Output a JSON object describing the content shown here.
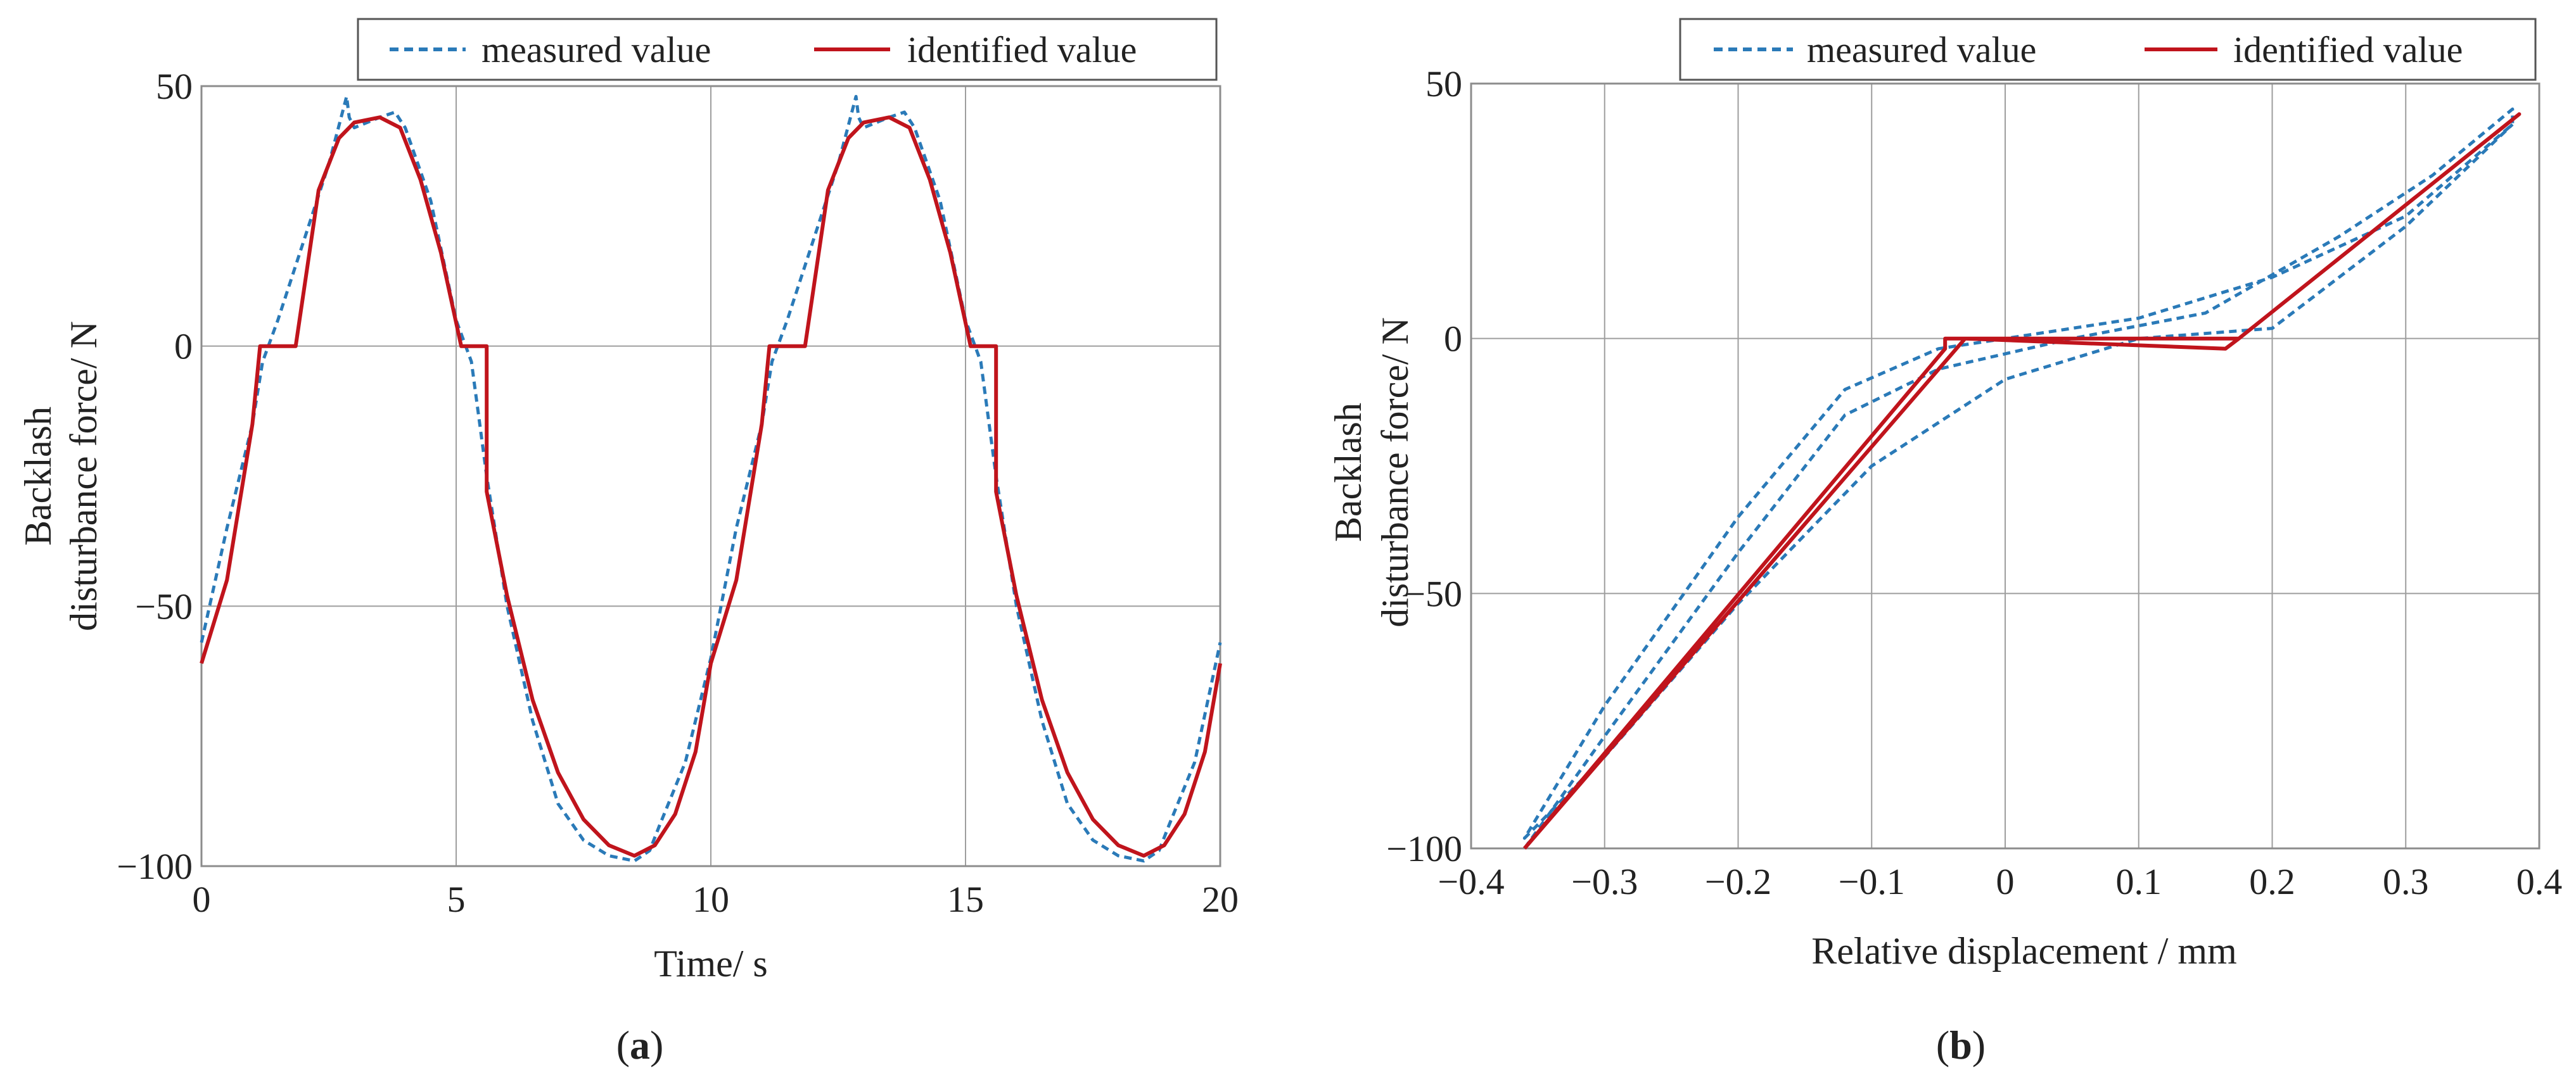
{
  "colors": {
    "measured": "#2a7ab8",
    "identified": "#c0141c",
    "grid": "#9e9e9e"
  },
  "captions": {
    "a": "a",
    "b": "b"
  },
  "chart_data": [
    {
      "id": "a",
      "type": "line",
      "xlabel": "Time/ s",
      "ylabel_line1": "Backlash",
      "ylabel_line2": "disturbance force/ N",
      "xlim": [
        0,
        20
      ],
      "ylim": [
        -100,
        50
      ],
      "xticks": [
        0,
        5,
        10,
        15,
        20
      ],
      "yticks": [
        -100,
        -50,
        0,
        50
      ],
      "grid": true,
      "legend_position": "top-right",
      "series": [
        {
          "name": "measured value",
          "style": "dashed",
          "x": [
            0,
            0.5,
            1.0,
            1.2,
            1.5,
            2.0,
            2.5,
            2.85,
            2.9,
            3.0,
            3.5,
            3.8,
            4.0,
            4.5,
            5.0,
            5.3,
            5.6,
            6.0,
            6.5,
            7.0,
            7.5,
            8.0,
            8.5,
            8.8,
            9.0,
            9.5,
            10.0,
            10.5,
            11.0,
            11.2,
            11.5,
            12.0,
            12.5,
            12.85,
            12.9,
            13.0,
            13.5,
            13.8,
            14.0,
            14.5,
            15.0,
            15.3,
            15.6,
            16.0,
            16.5,
            17.0,
            17.5,
            18.0,
            18.5,
            18.8,
            19.0,
            19.5,
            20.0
          ],
          "values": [
            -57,
            -35,
            -15,
            -3,
            5,
            20,
            35,
            48,
            44,
            42,
            44,
            45,
            42,
            28,
            5,
            -3,
            -25,
            -50,
            -72,
            -88,
            -95,
            -98,
            -99,
            -97,
            -92,
            -80,
            -60,
            -35,
            -15,
            -3,
            5,
            20,
            35,
            48,
            44,
            42,
            44,
            45,
            42,
            28,
            5,
            -3,
            -25,
            -50,
            -72,
            -88,
            -95,
            -98,
            -99,
            -97,
            -92,
            -80,
            -57
          ]
        },
        {
          "name": "identified value",
          "style": "solid",
          "x": [
            0,
            0.5,
            1.0,
            1.15,
            1.85,
            2.0,
            2.3,
            2.7,
            3.0,
            3.5,
            3.9,
            4.3,
            4.7,
            5.1,
            5.6,
            5.6,
            6.0,
            6.5,
            7.0,
            7.5,
            8.0,
            8.5,
            8.9,
            9.3,
            9.7,
            10.0,
            10.5,
            11.0,
            11.15,
            11.85,
            12.0,
            12.3,
            12.7,
            13.0,
            13.5,
            13.9,
            14.3,
            14.7,
            15.1,
            15.6,
            15.6,
            16.0,
            16.5,
            17.0,
            17.5,
            18.0,
            18.5,
            18.9,
            19.3,
            19.7,
            20.0
          ],
          "values": [
            -61,
            -45,
            -15,
            0,
            0,
            10,
            30,
            40,
            43,
            44,
            42,
            32,
            18,
            0,
            0,
            -28,
            -48,
            -68,
            -82,
            -91,
            -96,
            -98,
            -96,
            -90,
            -78,
            -61,
            -45,
            -15,
            0,
            0,
            10,
            30,
            40,
            43,
            44,
            42,
            32,
            18,
            0,
            0,
            -28,
            -48,
            -68,
            -82,
            -91,
            -96,
            -98,
            -96,
            -90,
            -78,
            -61
          ]
        }
      ]
    },
    {
      "id": "b",
      "type": "line",
      "xlabel": "Relative displacement / mm",
      "ylabel_line1": "Backlash",
      "ylabel_line2": "disturbance force/ N",
      "xlim": [
        -0.4,
        0.4
      ],
      "ylim": [
        -100,
        50
      ],
      "xticks": [
        -0.4,
        -0.3,
        -0.2,
        -0.1,
        0,
        0.1,
        0.2,
        0.3,
        0.4
      ],
      "yticks": [
        -100,
        -50,
        0,
        50
      ],
      "grid": true,
      "legend_position": "top-right",
      "series": [
        {
          "name": "measured value",
          "style": "dashed",
          "x": [
            -0.36,
            -0.3,
            -0.2,
            -0.12,
            -0.05,
            0.0,
            0.05,
            0.15,
            0.25,
            0.32,
            0.38,
            0.38,
            0.3,
            0.2,
            0.1,
            0.0,
            -0.05,
            -0.12,
            -0.2,
            -0.3,
            -0.36,
            -0.3,
            -0.2,
            -0.1,
            0.0,
            0.1,
            0.2,
            0.3,
            0.38
          ],
          "values": [
            -100,
            -78,
            -42,
            -15,
            -6,
            -3,
            0,
            5,
            20,
            32,
            45,
            42,
            24,
            12,
            4,
            0,
            -2,
            -10,
            -35,
            -72,
            -98,
            -82,
            -52,
            -25,
            -8,
            0,
            2,
            22,
            42
          ]
        },
        {
          "name": "identified value",
          "style": "solid",
          "x": [
            -0.36,
            -0.045,
            -0.045,
            0.175,
            0.385,
            0.175,
            0.165,
            -0.03,
            -0.36
          ],
          "values": [
            -100,
            -2,
            0,
            0,
            44,
            0,
            -2,
            0,
            -100
          ]
        }
      ]
    }
  ]
}
